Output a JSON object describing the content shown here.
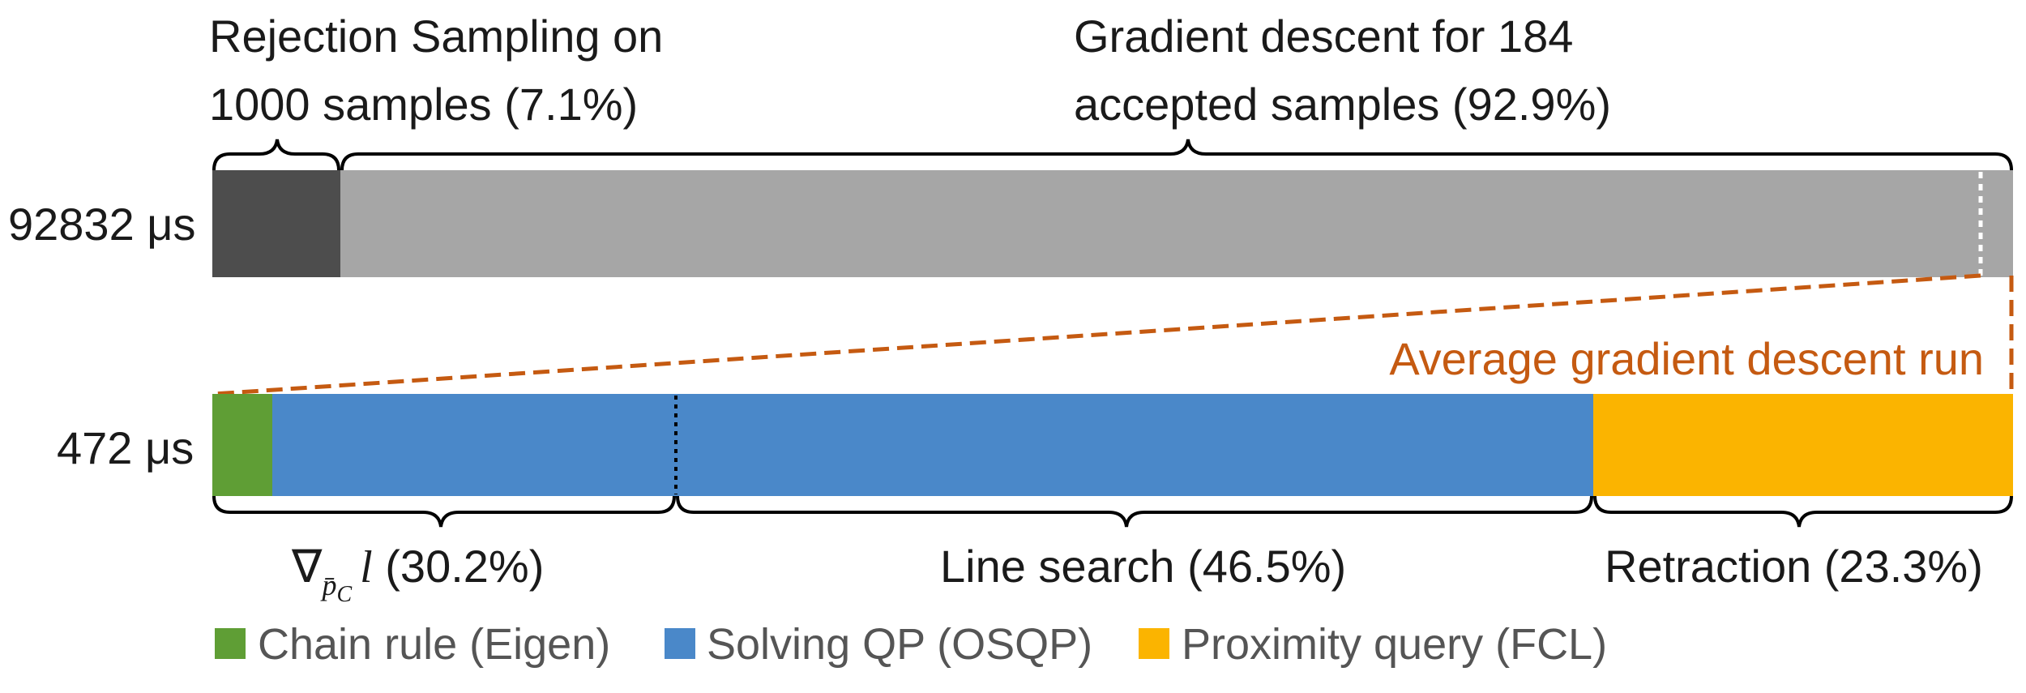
{
  "chart_data": [
    {
      "type": "bar",
      "orientation": "horizontal-stacked",
      "row_label": "92832 μs",
      "total_us": 92832,
      "segments": [
        {
          "name": "Rejection Sampling on 1000 samples",
          "share": 0.071,
          "color": "#4d4d4d"
        },
        {
          "name": "Gradient descent for 184 accepted samples",
          "share": 0.929,
          "color": "#a6a6a6"
        }
      ],
      "annotations": [
        {
          "lines": [
            "Rejection Sampling on",
            "1000 samples (7.1%)"
          ]
        },
        {
          "lines": [
            "Gradient descent for 184",
            "accepted samples (92.9%)"
          ]
        }
      ]
    },
    {
      "type": "bar",
      "orientation": "horizontal-stacked",
      "row_label": "472 μs",
      "total_us": 472,
      "segments": [
        {
          "name": "Chain rule (Eigen)",
          "share": 0.033,
          "color": "#5f9e35"
        },
        {
          "name": "Solving QP (OSQP)",
          "share": 0.734,
          "color": "#4a88c9"
        },
        {
          "name": "Proximity query (FCL)",
          "share": 0.233,
          "color": "#fbb400"
        }
      ],
      "annotations": [
        {
          "symbol": "∇",
          "sub": "p̄",
          "subsub": "C",
          "var": "l",
          "text": " (30.2%)",
          "share": 0.302
        },
        {
          "text": "Line search (46.5%)",
          "share": 0.465
        },
        {
          "text": "Retraction (23.3%)",
          "share": 0.233
        }
      ],
      "zoom_label": "Average gradient descent run"
    }
  ],
  "legend": [
    {
      "label": "Chain rule (Eigen)",
      "color": "#5f9e35"
    },
    {
      "label": "Solving QP (OSQP)",
      "color": "#4a88c9"
    },
    {
      "label": "Proximity query (FCL)",
      "color": "#fbb400"
    }
  ],
  "colors": {
    "zoom_line": "#c55a11",
    "divider": "#ffffff"
  }
}
